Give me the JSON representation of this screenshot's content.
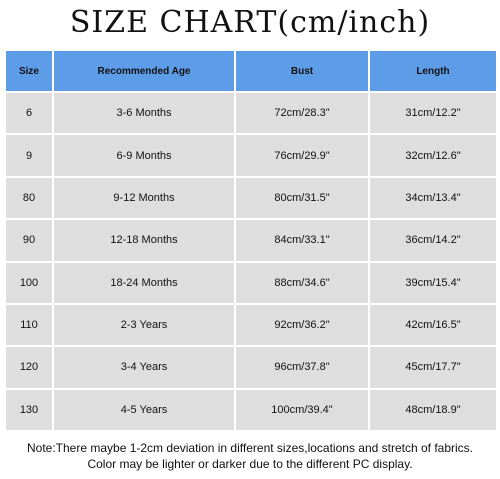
{
  "title": "SIZE CHART(cm/inch)",
  "colors": {
    "header_bg": "#5d9ce6",
    "row_bg": "#dedede",
    "grid": "#ffffff"
  },
  "table": {
    "headers": [
      "Size",
      "Recommended Age",
      "Bust",
      "Length"
    ],
    "rows": [
      [
        "6",
        "3-6 Months",
        "72cm/28.3\"",
        "31cm/12.2\""
      ],
      [
        "9",
        "6-9 Months",
        "76cm/29.9\"",
        "32cm/12.6\""
      ],
      [
        "80",
        "9-12 Months",
        "80cm/31.5\"",
        "34cm/13.4\""
      ],
      [
        "90",
        "12-18 Months",
        "84cm/33.1\"",
        "36cm/14.2\""
      ],
      [
        "100",
        "18-24 Months",
        "88cm/34.6\"",
        "39cm/15.4\""
      ],
      [
        "110",
        "2-3 Years",
        "92cm/36.2\"",
        "42cm/16.5\""
      ],
      [
        "120",
        "3-4 Years",
        "96cm/37.8\"",
        "45cm/17.7\""
      ],
      [
        "130",
        "4-5 Years",
        "100cm/39.4\"",
        "48cm/18.9\""
      ]
    ]
  },
  "notes": [
    "Note:There maybe 1-2cm deviation in different sizes,locations and stretch of fabrics.",
    "Color may be lighter or darker due to the different PC display."
  ]
}
